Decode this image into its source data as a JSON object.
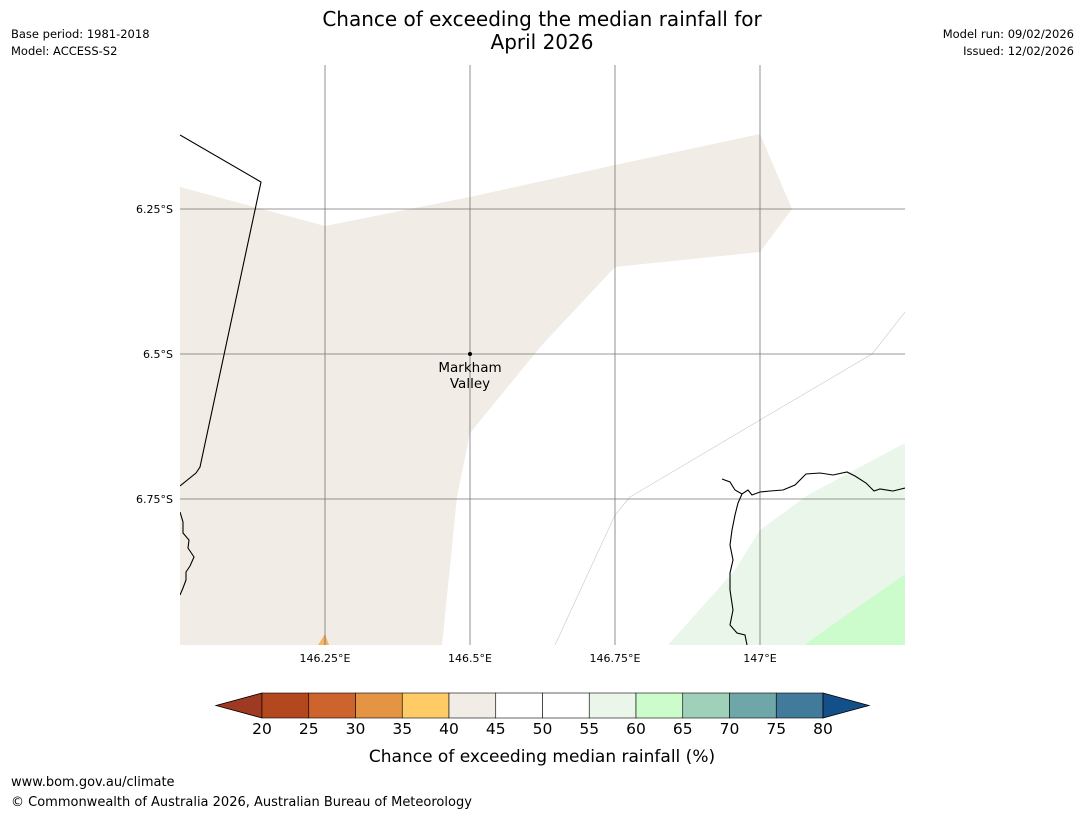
{
  "header": {
    "title_line1": "Chance of exceeding the median rainfall for",
    "title_line2": "April 2026",
    "base_period": "Base period: 1981-2018",
    "model": "Model: ACCESS-S2",
    "model_run": "Model run: 09/02/2026",
    "issued": "Issued: 12/02/2026"
  },
  "map": {
    "latitude_labels": [
      "6.25°S",
      "6.5°S",
      "6.75°S"
    ],
    "longitude_labels": [
      "146.25°E",
      "146.5°E",
      "146.75°E",
      "147°E"
    ],
    "place": {
      "name_line1": "Markham",
      "name_line2": "Valley"
    }
  },
  "colorbar": {
    "ticks": [
      "20",
      "25",
      "30",
      "35",
      "40",
      "45",
      "50",
      "55",
      "60",
      "65",
      "70",
      "75",
      "80"
    ],
    "colors": [
      "#9f3a22",
      "#b3481f",
      "#cd632d",
      "#e49443",
      "#fecb66",
      "#f1ece6",
      "#ffffff",
      "#ffffff",
      "#eaf6ea",
      "#ccfccc",
      "#9ed0ba",
      "#6fa7a8",
      "#417a9a",
      "#13508a"
    ],
    "label": "Chance of exceeding median rainfall (%)"
  },
  "footer": {
    "url": "www.bom.gov.au/climate",
    "copyright": "© Commonwealth of Australia 2026, Australian Bureau of Meteorology"
  }
}
